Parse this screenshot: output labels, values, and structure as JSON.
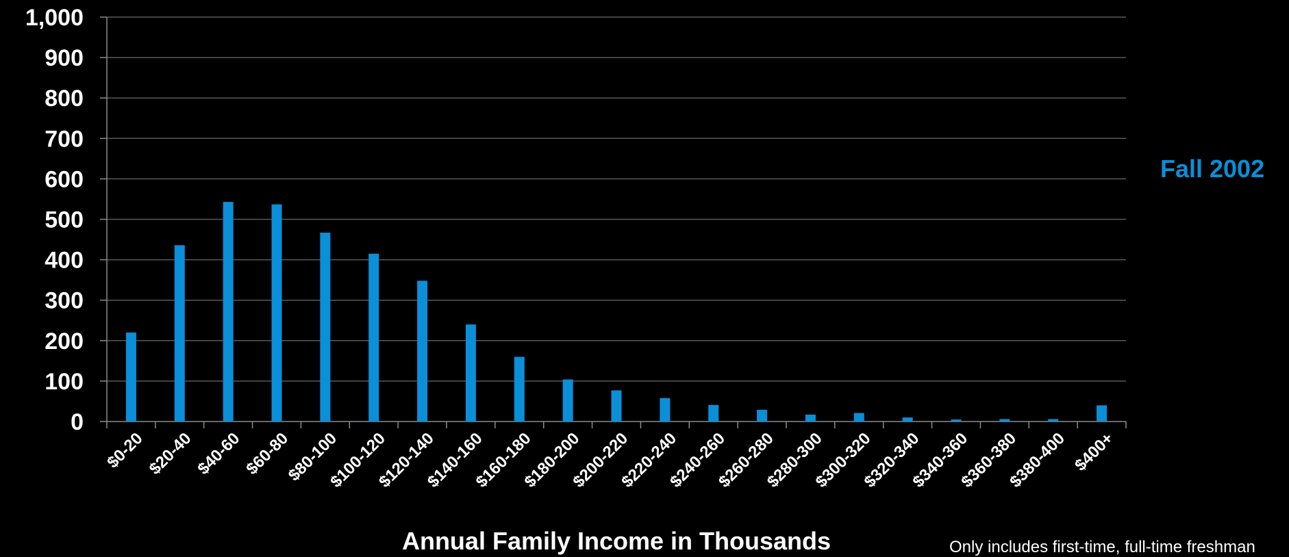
{
  "chart_data": {
    "type": "bar",
    "categories": [
      "$0-20",
      "$20-40",
      "$40-60",
      "$60-80",
      "$80-100",
      "$100-120",
      "$120-140",
      "$140-160",
      "$160-180",
      "$180-200",
      "$200-220",
      "$220-240",
      "$240-260",
      "$260-280",
      "$280-300",
      "$300-320",
      "$320-340",
      "$340-360",
      "$360-380",
      "$380-400",
      "$400+"
    ],
    "series": [
      {
        "name": "Fall 2002",
        "values": [
          220,
          436,
          543,
          537,
          467,
          415,
          348,
          240,
          160,
          104,
          77,
          58,
          41,
          29,
          17,
          21,
          10,
          5,
          6,
          6,
          40
        ]
      }
    ],
    "yticks": [
      "0",
      "100",
      "200",
      "300",
      "400",
      "500",
      "600",
      "700",
      "800",
      "900",
      "1,000"
    ],
    "ylim": [
      0,
      1000
    ],
    "xlabel": "Annual Family Income in Thousands",
    "ylabel": "",
    "grid": true,
    "legend_position": "right",
    "colors": {
      "bar": "#0a8fd8",
      "grid": "#5a5a5a",
      "axis": "#8c8c8c",
      "background": "#000000"
    }
  },
  "footnote": "Only includes first-time, full-time freshman"
}
